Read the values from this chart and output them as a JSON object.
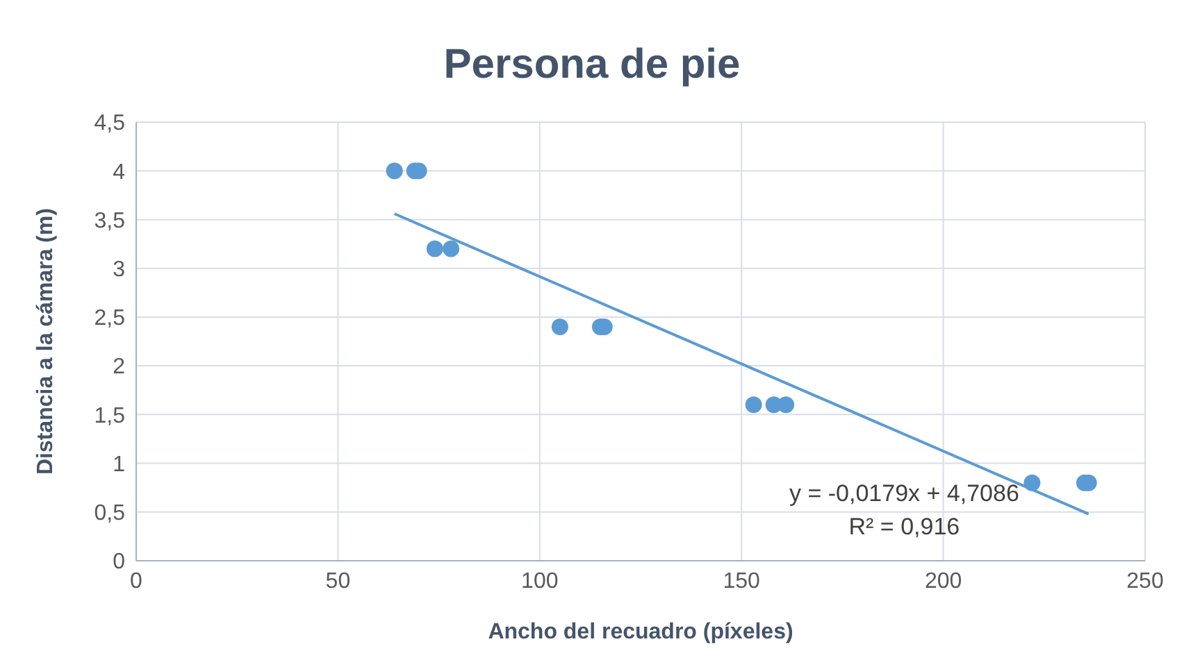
{
  "chart_data": {
    "type": "scatter",
    "title": "Persona de pie",
    "xlabel": "Ancho del recuadro (píxeles)",
    "ylabel": "Distancia a la cámara (m)",
    "xlim": [
      0,
      250
    ],
    "xticks": [
      0,
      50,
      100,
      150,
      200,
      250
    ],
    "ylim": [
      0,
      4.5
    ],
    "yticks": [
      0,
      {
        "value": 0.5,
        "label": "0,5"
      },
      1,
      {
        "value": 1.5,
        "label": "1,5"
      },
      2,
      {
        "value": 2.5,
        "label": "2,5"
      },
      3,
      {
        "value": 3.5,
        "label": "3,5"
      },
      4,
      {
        "value": 4.5,
        "label": "4,5"
      }
    ],
    "grid": true,
    "marker": "circle",
    "series": [
      {
        "color": "#5b9bd5",
        "x": [
          64,
          69,
          70,
          74,
          78,
          105,
          115,
          116,
          153,
          158,
          161,
          222,
          235,
          236
        ],
        "values": [
          4,
          4,
          4,
          3.2,
          3.2,
          2.4,
          2.4,
          2.4,
          1.6,
          1.6,
          1.6,
          0.8,
          0.8,
          0.8
        ]
      },
      {
        "type": "line",
        "marker": "none",
        "color": "#5b9bd5",
        "x": [
          64,
          236
        ],
        "values": [
          3.56,
          0.48
        ]
      }
    ],
    "annotations": [
      "y = -0,0179x + 4,7086",
      "R² = 0,916"
    ]
  }
}
